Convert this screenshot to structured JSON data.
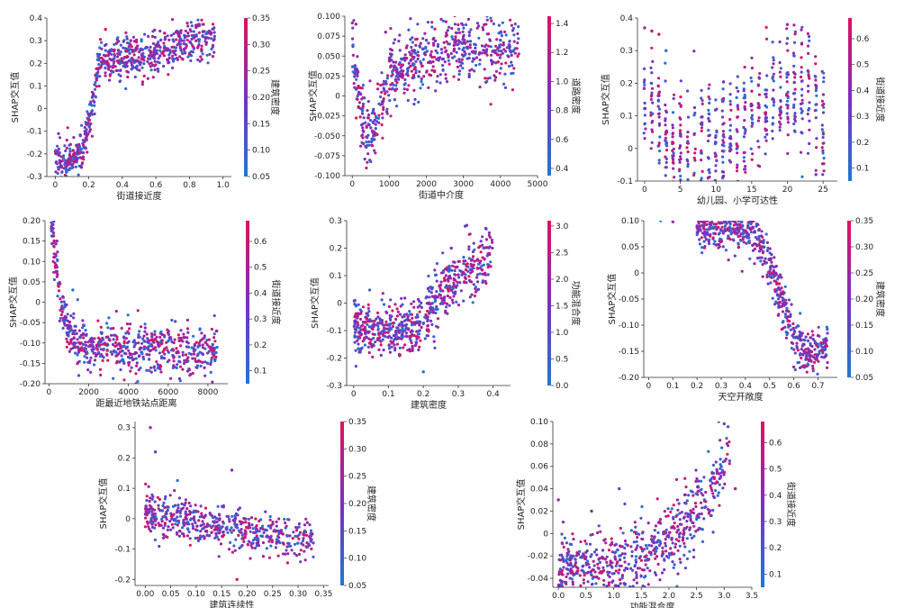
{
  "figure": {
    "colormap": [
      "#1f77d4",
      "#7b2fbf",
      "#e0115f"
    ]
  },
  "chart_data": [
    {
      "type": "scatter",
      "xlabel": "街道接近度",
      "ylabel": "SHAP交互值",
      "colorbar_label": "建筑密度",
      "xlim": [
        -0.05,
        1.05
      ],
      "ylim": [
        -0.3,
        0.4
      ],
      "xticks": [
        "0",
        "0.2",
        "0.4",
        "0.6",
        "0.8",
        "1.0"
      ],
      "xtick_values": [
        0,
        0.2,
        0.4,
        0.6,
        0.8,
        1.0
      ],
      "yticks": [
        "-0.3",
        "-0.2",
        "-0.1",
        "0",
        "0.1",
        "0.2",
        "0.3",
        "0.4"
      ],
      "ytick_values": [
        -0.3,
        -0.2,
        -0.1,
        0,
        0.1,
        0.2,
        0.3,
        0.4
      ],
      "clim": [
        0.05,
        0.35
      ],
      "cticks": [
        "0.05",
        "0.10",
        "0.15",
        "0.20",
        "0.25",
        "0.30",
        "0.35"
      ],
      "ctick_values": [
        0.05,
        0.1,
        0.15,
        0.2,
        0.25,
        0.3,
        0.35
      ],
      "trend": [
        [
          0.0,
          -0.24
        ],
        [
          0.1,
          -0.23
        ],
        [
          0.17,
          -0.17
        ],
        [
          0.22,
          0.0
        ],
        [
          0.26,
          0.2
        ],
        [
          0.4,
          0.22
        ],
        [
          0.6,
          0.24
        ],
        [
          0.8,
          0.3
        ],
        [
          0.95,
          0.32
        ]
      ],
      "spread": 0.045,
      "x_range": [
        0.0,
        0.95
      ],
      "n": 700,
      "notable_points": [
        [
          0.05,
          -0.22
        ],
        [
          0.1,
          -0.25
        ],
        [
          0.15,
          -0.12
        ],
        [
          0.2,
          -0.05
        ],
        [
          0.25,
          0.15
        ],
        [
          0.3,
          0.35
        ],
        [
          0.45,
          0.3
        ],
        [
          0.6,
          0.28
        ],
        [
          0.75,
          0.3
        ],
        [
          0.9,
          0.33
        ]
      ]
    },
    {
      "type": "scatter",
      "xlabel": "街道中介度",
      "ylabel": "SHAP交互值",
      "colorbar_label": "道路密度",
      "xlim": [
        -200,
        5000
      ],
      "ylim": [
        -0.1,
        0.1
      ],
      "xticks": [
        "0",
        "1000",
        "2000",
        "3000",
        "4000",
        "5000"
      ],
      "xtick_values": [
        0,
        1000,
        2000,
        3000,
        4000,
        5000
      ],
      "yticks": [
        "-0.100",
        "-0.075",
        "-0.050",
        "-0.025",
        "0",
        "0.025",
        "0.050",
        "0.075",
        "0.100"
      ],
      "ytick_values": [
        -0.1,
        -0.075,
        -0.05,
        -0.025,
        0,
        0.025,
        0.05,
        0.075,
        0.1
      ],
      "clim": [
        0.35,
        1.45
      ],
      "cticks": [
        "0.4",
        "0.6",
        "0.8",
        "1.0",
        "1.2",
        "1.4"
      ],
      "ctick_values": [
        0.4,
        0.6,
        0.8,
        1.0,
        1.2,
        1.4
      ],
      "trend": [
        [
          0,
          0.05
        ],
        [
          100,
          0.04
        ],
        [
          200,
          -0.02
        ],
        [
          400,
          -0.045
        ],
        [
          600,
          -0.04
        ],
        [
          800,
          0.0
        ],
        [
          1000,
          0.03
        ],
        [
          1500,
          0.04
        ],
        [
          2500,
          0.06
        ],
        [
          3500,
          0.06
        ],
        [
          4500,
          0.06
        ]
      ],
      "spread": 0.022,
      "x_range": [
        0,
        4500
      ],
      "n": 650,
      "notable_points": [
        [
          100,
          0.09
        ],
        [
          300,
          -0.06
        ],
        [
          500,
          -0.04
        ],
        [
          900,
          0.08
        ],
        [
          1200,
          0.03
        ],
        [
          2000,
          0.07
        ],
        [
          3000,
          0.05
        ],
        [
          4000,
          0.07
        ]
      ]
    },
    {
      "type": "scatter",
      "xlabel": "幼儿园、小学可达性",
      "ylabel": "SHAP交互值",
      "colorbar_label": "街道接近度",
      "xlim": [
        -1,
        27
      ],
      "ylim": [
        -0.1,
        0.4
      ],
      "xticks": [
        "0",
        "5",
        "10",
        "15",
        "20",
        "25"
      ],
      "xtick_values": [
        0,
        5,
        10,
        15,
        20,
        25
      ],
      "yticks": [
        "-0.1",
        "0",
        "0.1",
        "0.2",
        "0.3",
        "0.4"
      ],
      "ytick_values": [
        -0.1,
        0,
        0.1,
        0.2,
        0.3,
        0.4
      ],
      "clim": [
        0.05,
        0.68
      ],
      "cticks": [
        "0.1",
        "0.2",
        "0.3",
        "0.4",
        "0.5",
        "0.6"
      ],
      "ctick_values": [
        0.1,
        0.2,
        0.3,
        0.4,
        0.5,
        0.6
      ],
      "discrete_x": [
        0,
        1,
        2,
        3,
        4,
        5,
        6,
        7,
        8,
        9,
        10,
        11,
        12,
        13,
        14,
        15,
        16,
        17,
        18,
        19,
        20,
        21,
        22,
        23,
        24,
        25
      ],
      "trend": [
        [
          0,
          0.12
        ],
        [
          2,
          0.12
        ],
        [
          3,
          0.02
        ],
        [
          5,
          -0.02
        ],
        [
          8,
          0.02
        ],
        [
          12,
          0.05
        ],
        [
          15,
          0.1
        ],
        [
          18,
          0.15
        ],
        [
          21,
          0.2
        ],
        [
          23,
          0.15
        ],
        [
          25,
          0.05
        ]
      ],
      "spread": 0.09,
      "x_range": [
        0,
        25
      ],
      "n": 600,
      "notable_points": [
        [
          0,
          0.37
        ],
        [
          1,
          0.36
        ],
        [
          2,
          0.35
        ],
        [
          3,
          0.3
        ],
        [
          20,
          0.38
        ],
        [
          22,
          0.32
        ],
        [
          24,
          -0.08
        ]
      ]
    },
    {
      "type": "scatter",
      "xlabel": "距最近地铁站点距离",
      "ylabel": "SHAP交互值",
      "colorbar_label": "街道接近度",
      "xlim": [
        -200,
        9000
      ],
      "ylim": [
        -0.2,
        0.2
      ],
      "xticks": [
        "0",
        "2000",
        "4000",
        "6000",
        "8000"
      ],
      "xtick_values": [
        0,
        2000,
        4000,
        6000,
        8000
      ],
      "yticks": [
        "-0.20",
        "-0.15",
        "-0.10",
        "-0.05",
        "0",
        "0.05",
        "0.10",
        "0.15",
        "0.20"
      ],
      "ytick_values": [
        -0.2,
        -0.15,
        -0.1,
        -0.05,
        0,
        0.05,
        0.1,
        0.15,
        0.2
      ],
      "clim": [
        0.05,
        0.68
      ],
      "cticks": [
        "0.1",
        "0.2",
        "0.3",
        "0.4",
        "0.5",
        "0.6"
      ],
      "ctick_values": [
        0.1,
        0.2,
        0.3,
        0.4,
        0.5,
        0.6
      ],
      "trend": [
        [
          100,
          0.19
        ],
        [
          300,
          0.12
        ],
        [
          600,
          0.0
        ],
        [
          900,
          -0.06
        ],
        [
          1400,
          -0.1
        ],
        [
          2000,
          -0.11
        ],
        [
          4000,
          -0.115
        ],
        [
          6000,
          -0.12
        ],
        [
          8000,
          -0.12
        ]
      ],
      "spread": 0.028,
      "x_range": [
        100,
        8500
      ],
      "n": 650,
      "notable_points": [
        [
          200,
          0.19
        ],
        [
          400,
          0.15
        ],
        [
          1200,
          0.03
        ],
        [
          1500,
          -0.18
        ],
        [
          2500,
          -0.1
        ],
        [
          5000,
          -0.11
        ],
        [
          7500,
          -0.11
        ]
      ]
    },
    {
      "type": "scatter",
      "xlabel": "建筑密度",
      "ylabel": "SHAP交互值",
      "colorbar_label": "功能混合度",
      "xlim": [
        -0.02,
        0.45
      ],
      "ylim": [
        -0.3,
        0.3
      ],
      "xticks": [
        "0",
        "0.1",
        "0.2",
        "0.3",
        "0.4"
      ],
      "xtick_values": [
        0,
        0.1,
        0.2,
        0.3,
        0.4
      ],
      "yticks": [
        "-0.3",
        "-0.2",
        "-0.1",
        "0",
        "0.1",
        "0.2",
        "0.3"
      ],
      "ytick_values": [
        -0.3,
        -0.2,
        -0.1,
        0,
        0.1,
        0.2,
        0.3
      ],
      "clim": [
        0.0,
        3.1
      ],
      "cticks": [
        "0.0",
        "0.5",
        "1.0",
        "1.5",
        "2.0",
        "2.5",
        "3.0"
      ],
      "ctick_values": [
        0,
        0.5,
        1.0,
        1.5,
        2.0,
        2.5,
        3.0
      ],
      "trend": [
        [
          0.0,
          -0.09
        ],
        [
          0.1,
          -0.1
        ],
        [
          0.18,
          -0.1
        ],
        [
          0.22,
          -0.02
        ],
        [
          0.26,
          0.05
        ],
        [
          0.3,
          0.12
        ],
        [
          0.35,
          0.12
        ],
        [
          0.4,
          0.2
        ]
      ],
      "spread": 0.05,
      "x_range": [
        0.0,
        0.4
      ],
      "n": 650,
      "notable_points": [
        [
          0.05,
          -0.15
        ],
        [
          0.2,
          -0.25
        ],
        [
          0.32,
          0.28
        ],
        [
          0.38,
          0.27
        ],
        [
          0.28,
          0.2
        ]
      ]
    },
    {
      "type": "scatter",
      "xlabel": "天空开敞度",
      "ylabel": "SHAP交互值",
      "colorbar_label": "建筑密度",
      "xlim": [
        -0.02,
        0.78
      ],
      "ylim": [
        -0.2,
        0.1
      ],
      "xticks": [
        "0",
        "0.1",
        "0.2",
        "0.3",
        "0.4",
        "0.5",
        "0.6",
        "0.7"
      ],
      "xtick_values": [
        0,
        0.1,
        0.2,
        0.3,
        0.4,
        0.5,
        0.6,
        0.7
      ],
      "yticks": [
        "-0.20",
        "-0.15",
        "-0.10",
        "-0.05",
        "0",
        "0.05",
        "0.10"
      ],
      "ytick_values": [
        -0.2,
        -0.15,
        -0.1,
        -0.05,
        0,
        0.05,
        0.1
      ],
      "clim": [
        0.05,
        0.35
      ],
      "cticks": [
        "0.05",
        "0.10",
        "0.15",
        "0.20",
        "0.25",
        "0.30",
        "0.35"
      ],
      "ctick_values": [
        0.05,
        0.1,
        0.15,
        0.2,
        0.25,
        0.3,
        0.35
      ],
      "trend": [
        [
          0.2,
          0.095
        ],
        [
          0.35,
          0.09
        ],
        [
          0.45,
          0.07
        ],
        [
          0.5,
          0.02
        ],
        [
          0.55,
          -0.05
        ],
        [
          0.6,
          -0.12
        ],
        [
          0.65,
          -0.15
        ],
        [
          0.72,
          -0.14
        ]
      ],
      "spread": 0.022,
      "x_range": [
        0.2,
        0.74
      ],
      "n": 650,
      "notable_points": [
        [
          0.05,
          0.1
        ],
        [
          0.1,
          0.098
        ],
        [
          0.6,
          -0.18
        ],
        [
          0.7,
          -0.12
        ],
        [
          0.73,
          -0.16
        ]
      ]
    },
    {
      "type": "scatter",
      "xlabel": "建筑连续性",
      "ylabel": "SHAP交互值",
      "colorbar_label": "建筑密度",
      "xlim": [
        -0.02,
        0.36
      ],
      "ylim": [
        -0.22,
        0.32
      ],
      "xticks": [
        "0.00",
        "0.05",
        "0.10",
        "0.15",
        "0.20",
        "0.25",
        "0.30",
        "0.35"
      ],
      "xtick_values": [
        0,
        0.05,
        0.1,
        0.15,
        0.2,
        0.25,
        0.3,
        0.35
      ],
      "yticks": [
        "-0.2",
        "-0.1",
        "0",
        "0.1",
        "0.2",
        "0.3"
      ],
      "ytick_values": [
        -0.2,
        -0.1,
        0,
        0.1,
        0.2,
        0.3
      ],
      "clim": [
        0.05,
        0.35
      ],
      "cticks": [
        "0.05",
        "0.10",
        "0.15",
        "0.20",
        "0.25",
        "0.30",
        "0.35"
      ],
      "ctick_values": [
        0.05,
        0.1,
        0.15,
        0.2,
        0.25,
        0.3,
        0.35
      ],
      "trend": [
        [
          0.0,
          0.02
        ],
        [
          0.05,
          0.0
        ],
        [
          0.1,
          -0.01
        ],
        [
          0.15,
          -0.03
        ],
        [
          0.2,
          -0.05
        ],
        [
          0.3,
          -0.06
        ]
      ],
      "spread": 0.035,
      "x_range": [
        0.0,
        0.33
      ],
      "n": 550,
      "notable_points": [
        [
          0.01,
          0.3
        ],
        [
          0.02,
          0.22
        ],
        [
          0.17,
          0.16
        ],
        [
          0.33,
          -0.08
        ],
        [
          0.18,
          -0.2
        ]
      ]
    },
    {
      "type": "scatter",
      "xlabel": "功能混合度",
      "ylabel": "SHAP交互值",
      "colorbar_label": "街道接近度",
      "xlim": [
        -0.1,
        3.5
      ],
      "ylim": [
        -0.048,
        0.1
      ],
      "xticks": [
        "0.0",
        "0.5",
        "1.0",
        "1.5",
        "2.0",
        "2.5",
        "3.0",
        "3.5"
      ],
      "xtick_values": [
        0,
        0.5,
        1.0,
        1.5,
        2.0,
        2.5,
        3.0,
        3.5
      ],
      "yticks": [
        "-0.04",
        "-0.02",
        "0",
        "0.02",
        "0.04",
        "0.06",
        "0.08",
        "0.10"
      ],
      "ytick_values": [
        -0.04,
        -0.02,
        0,
        0.02,
        0.04,
        0.06,
        0.08,
        0.1
      ],
      "clim": [
        0.05,
        0.68
      ],
      "cticks": [
        "0.1",
        "0.2",
        "0.3",
        "0.4",
        "0.5",
        "0.6"
      ],
      "ctick_values": [
        0.1,
        0.2,
        0.3,
        0.4,
        0.5,
        0.6
      ],
      "trend": [
        [
          0.0,
          -0.03
        ],
        [
          0.6,
          -0.03
        ],
        [
          1.2,
          -0.025
        ],
        [
          1.6,
          -0.015
        ],
        [
          2.0,
          -0.005
        ],
        [
          2.3,
          0.01
        ],
        [
          2.6,
          0.03
        ],
        [
          3.0,
          0.055
        ],
        [
          3.1,
          0.08
        ]
      ],
      "spread": 0.015,
      "x_range": [
        0.0,
        3.1
      ],
      "n": 650,
      "notable_points": [
        [
          0.0,
          0.03
        ],
        [
          0.6,
          0.02
        ],
        [
          1.1,
          0.04
        ],
        [
          2.9,
          0.1
        ],
        [
          3.0,
          0.098
        ],
        [
          3.2,
          0.04
        ]
      ]
    }
  ]
}
